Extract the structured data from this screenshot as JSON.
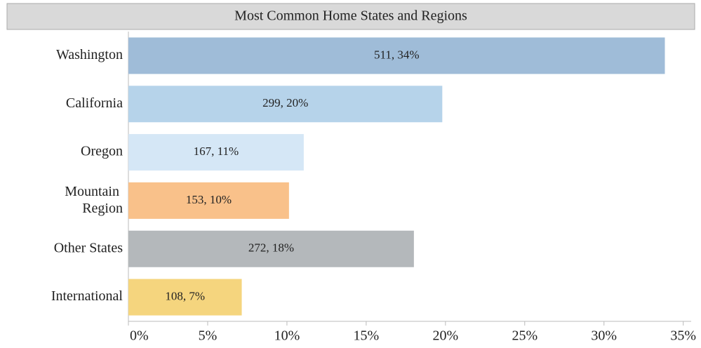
{
  "chart_data": {
    "type": "bar",
    "orientation": "horizontal",
    "title": "Most Common Home States and Regions",
    "categories": [
      "Washington",
      "California",
      "Oregon",
      "Mountain Region",
      "Other States",
      "International"
    ],
    "values": [
      33.84,
      19.8,
      11.06,
      10.13,
      18.01,
      7.15
    ],
    "value_labels": [
      "511, 34%",
      "299, 20%",
      "167, 11%",
      "153, 10%",
      "272, 18%",
      "108, 7%"
    ],
    "colors": [
      "#9fbcd8",
      "#b6d3ea",
      "#d5e7f6",
      "#f9c18a",
      "#b4b8bb",
      "#f5d57e"
    ],
    "xlim": [
      0,
      35.5
    ],
    "xticks": [
      {
        "value": 0,
        "label": "0%"
      },
      {
        "value": 5,
        "label": "5%"
      },
      {
        "value": 10,
        "label": "10%"
      },
      {
        "value": 15,
        "label": "15%"
      },
      {
        "value": 20,
        "label": "20%"
      },
      {
        "value": 25,
        "label": "25%"
      },
      {
        "value": 30,
        "label": "30%"
      },
      {
        "value": 35,
        "label": "35%"
      }
    ],
    "grid": false
  }
}
